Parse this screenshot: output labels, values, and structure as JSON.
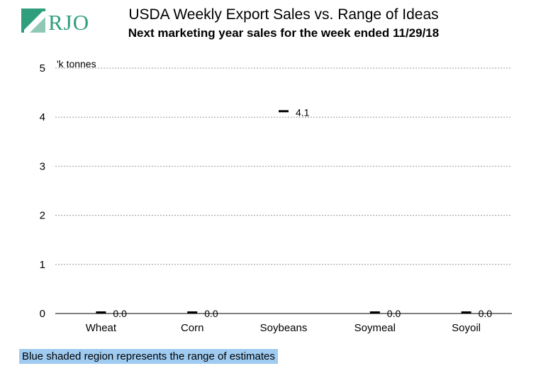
{
  "header": {
    "logo_text": "RJO",
    "title": "USDA Weekly Export Sales vs. Range of Ideas",
    "subtitle": "Next marketing year sales for the week ended 11/29/18"
  },
  "footnote": "Blue shaded region represents the range of estimates",
  "colors": {
    "logo": "#2f9e7c",
    "range_fill": "#9fcbf1",
    "actual_mark": "#000000"
  },
  "chart_data": {
    "type": "bar",
    "title": "USDA Weekly Export Sales vs. Range of Ideas",
    "subtitle": "Next marketing year sales for the week ended 11/29/18",
    "ylabel": "'k tonnes",
    "ylim": [
      0,
      5
    ],
    "yticks": [
      0,
      1,
      2,
      3,
      4,
      5
    ],
    "grid": true,
    "categories": [
      "Wheat",
      "Corn",
      "Soybeans",
      "Soymeal",
      "Soyoil"
    ],
    "series": [
      {
        "values": [
          0.0,
          0.0,
          4.1,
          0.0,
          0.0
        ],
        "labels": [
          "0.0",
          "0.0",
          "4.1",
          "0.0",
          "0.0"
        ]
      }
    ]
  }
}
